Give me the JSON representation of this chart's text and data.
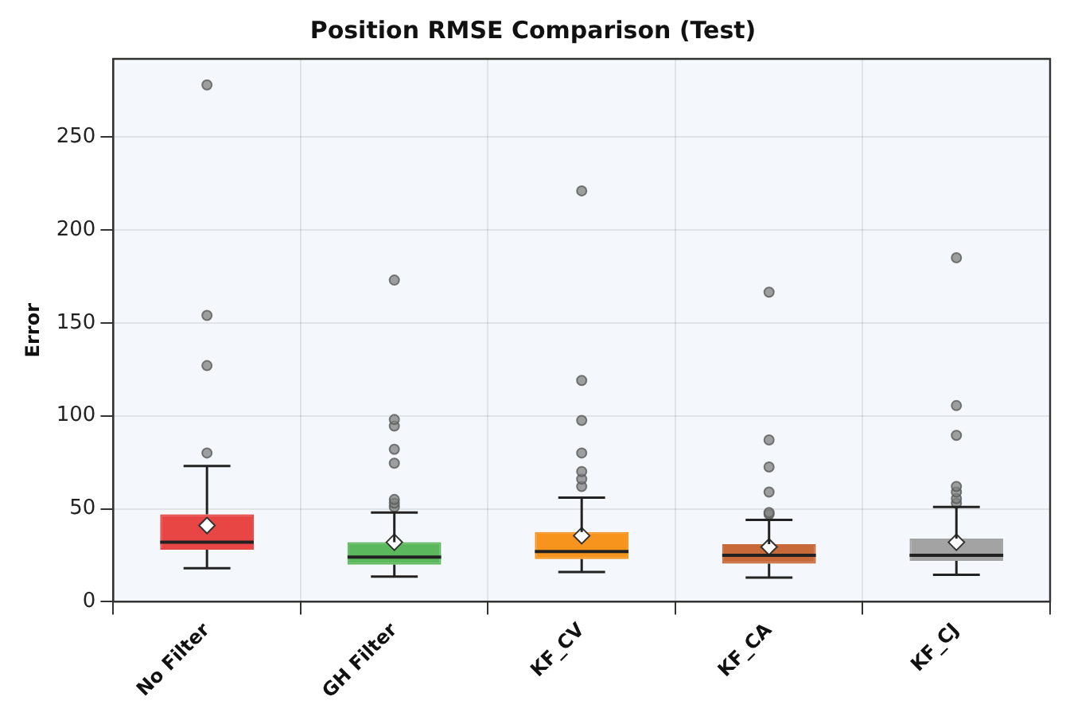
{
  "chart_data": {
    "type": "box",
    "title": "Position RMSE Comparison (Test)",
    "ylabel": "Error",
    "categories": [
      "No Filter",
      "GH Filter",
      "KF_CV",
      "KF_CA",
      "KF_CJ"
    ],
    "colors": [
      "#e84545",
      "#5cb85c",
      "#f7941d",
      "#c8693a",
      "#a3a3a3"
    ],
    "boxes": [
      {
        "low": 18,
        "q1": 28,
        "median": 32,
        "q3": 47,
        "high": 73,
        "mean": 41,
        "outliers": [
          80,
          127,
          154,
          278
        ]
      },
      {
        "low": 13.5,
        "q1": 20,
        "median": 24,
        "q3": 32,
        "high": 48,
        "mean": 32,
        "outliers": [
          51,
          53,
          55,
          74.5,
          82,
          94.5,
          98,
          173
        ]
      },
      {
        "low": 16,
        "q1": 23,
        "median": 27,
        "q3": 37.5,
        "high": 56,
        "mean": 35.5,
        "outliers": [
          62,
          66,
          70,
          80,
          97.5,
          119,
          221
        ]
      },
      {
        "low": 13,
        "q1": 20.5,
        "median": 25,
        "q3": 31,
        "high": 44,
        "mean": 29.5,
        "outliers": [
          47,
          48,
          59,
          72.5,
          87,
          166.5
        ]
      },
      {
        "low": 14.5,
        "q1": 22,
        "median": 25,
        "q3": 34,
        "high": 51,
        "mean": 32,
        "outliers": [
          53,
          55.5,
          59,
          62,
          89.5,
          105.5,
          185
        ]
      }
    ],
    "ylim": [
      0,
      292
    ],
    "yticks": [
      0,
      50,
      100,
      150,
      200,
      250
    ],
    "grid": true
  }
}
